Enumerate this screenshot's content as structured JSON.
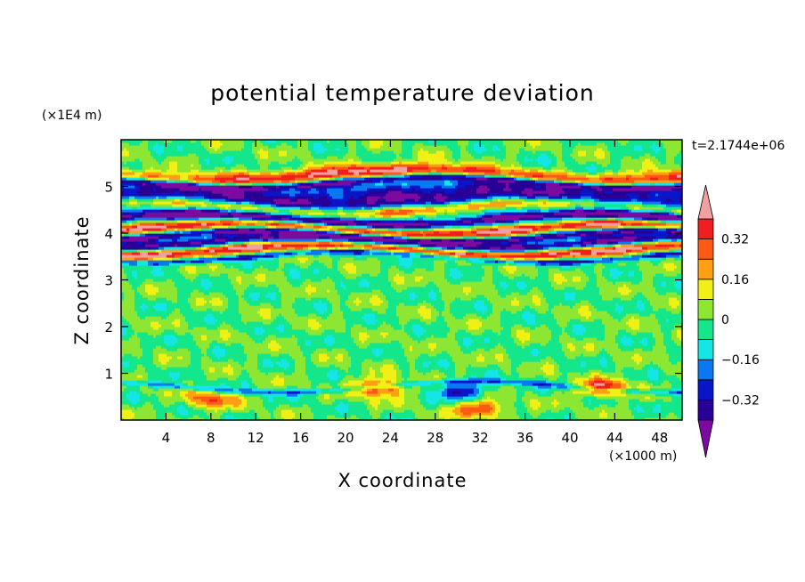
{
  "chart_data": {
    "type": "heatmap",
    "title": "potential temperature deviation",
    "xlabel": "X coordinate",
    "ylabel": "Z coordinate",
    "x_unit": "(×1000 m)",
    "y_unit": "(×1E4 m)",
    "time_label": "t=2.1744e+06",
    "xlim": [
      0,
      50
    ],
    "ylim": [
      0,
      6
    ],
    "x_ticks": [
      4,
      8,
      12,
      16,
      20,
      24,
      28,
      32,
      36,
      40,
      44,
      48
    ],
    "x_tick_labels": [
      "4",
      "8",
      "12",
      "16",
      "20",
      "24",
      "28",
      "32",
      "36",
      "40",
      "44",
      "48"
    ],
    "y_ticks": [
      1,
      2,
      3,
      4,
      5
    ],
    "y_tick_labels": [
      "1",
      "2",
      "3",
      "4",
      "5"
    ],
    "colorbar": {
      "levels": [
        -0.4,
        -0.32,
        -0.24,
        -0.16,
        -0.08,
        0,
        0.08,
        0.16,
        0.24,
        0.32,
        0.4
      ],
      "tick_values": [
        0.32,
        0.16,
        0,
        -0.16,
        -0.32
      ],
      "tick_labels": [
        "0.32",
        "0.16",
        "0",
        "−0.16",
        "−0.32"
      ],
      "colors": [
        "#7a0aa0",
        "#280096",
        "#0a14c8",
        "#0a78f0",
        "#14e6e6",
        "#14e68c",
        "#8ce632",
        "#f0f014",
        "#ffa014",
        "#ff5a14",
        "#f01e1e",
        "#f0a0a0"
      ],
      "extend": "both"
    },
    "bands": [
      {
        "z_center": 5.1,
        "thickness": 0.08,
        "value": -0.4
      },
      {
        "z_center": 5.25,
        "thickness": 0.15,
        "value": 0.42
      },
      {
        "z_center": 4.75,
        "thickness": 0.35,
        "value": -0.4
      },
      {
        "z_center": 4.55,
        "thickness": 0.12,
        "value": 0.42
      },
      {
        "z_center": 4.3,
        "thickness": 0.1,
        "value": -0.4
      },
      {
        "z_center": 4.1,
        "thickness": 0.1,
        "value": 0.42
      },
      {
        "z_center": 3.95,
        "thickness": 0.08,
        "value": -0.4
      },
      {
        "z_center": 3.8,
        "thickness": 0.1,
        "value": -0.4
      },
      {
        "z_center": 3.65,
        "thickness": 0.1,
        "value": 0.42
      },
      {
        "z_center": 3.5,
        "thickness": 0.06,
        "value": -0.3
      },
      {
        "z_center": 0.72,
        "thickness": 0.06,
        "value": -0.2
      }
    ],
    "blobs": [
      {
        "x": 8,
        "z": 0.45,
        "value": 0.3
      },
      {
        "x": 23,
        "z": 0.7,
        "value": 0.42
      },
      {
        "x": 32,
        "z": 0.25,
        "value": 0.36
      },
      {
        "x": 30.5,
        "z": 0.62,
        "value": -0.32
      },
      {
        "x": 43,
        "z": 0.7,
        "value": 0.42
      }
    ]
  }
}
